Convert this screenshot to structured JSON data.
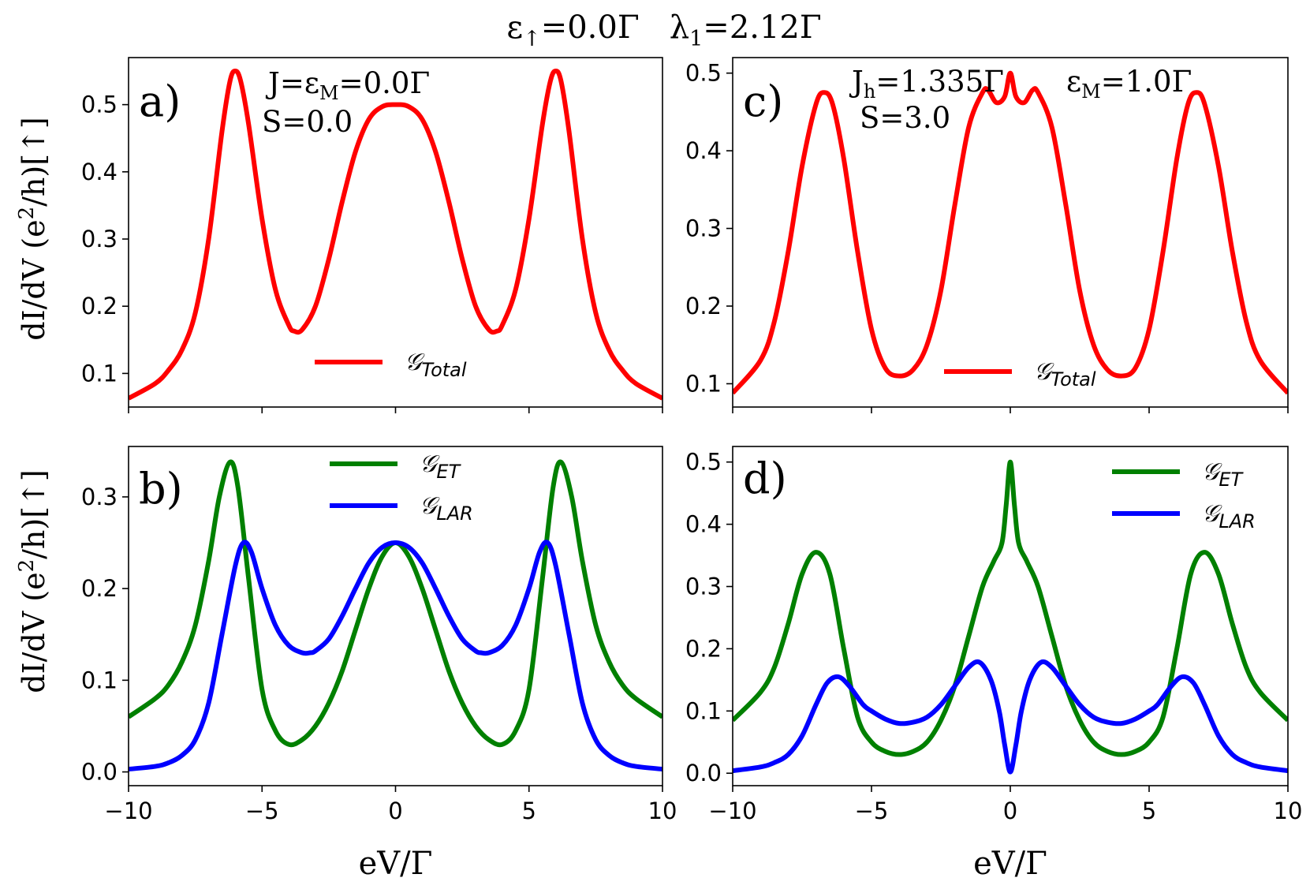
{
  "figure": {
    "title_parts": [
      "ε",
      "↑",
      "=0.0Γ   λ",
      "1",
      "=2.12Γ"
    ],
    "ylabel_parts": [
      "dI/dV (e",
      "2",
      "/h)[↑]"
    ],
    "xlabel": "eV/Γ"
  },
  "colors": {
    "total": "#ff0000",
    "et": "#008000",
    "lar": "#0000ff",
    "axis": "#000000",
    "background": "#ffffff"
  },
  "chart_data": [
    {
      "id": "a",
      "type": "line",
      "panel_label": "a)",
      "annotations": [
        {
          "parts": [
            "J=ε",
            "M",
            "=0.0Γ"
          ]
        },
        {
          "parts": [
            "S=0.0"
          ]
        }
      ],
      "xlim": [
        -10,
        10
      ],
      "ylim": [
        0.05,
        0.57
      ],
      "xticks": [
        -10,
        -5,
        0,
        5,
        10
      ],
      "yticks": [
        0.1,
        0.2,
        0.3,
        0.4,
        0.5
      ],
      "ytick_labels": [
        "0.1",
        "0.2",
        "0.3",
        "0.4",
        "0.5"
      ],
      "xtick_labels_visible": false,
      "xlabel": "",
      "legend_position": "bottom-center",
      "series": [
        {
          "name": "Total",
          "legend_main": "𝒢",
          "legend_sub": "Total",
          "color_key": "total",
          "x": [
            -10,
            -9,
            -8.5,
            -8,
            -7.5,
            -7,
            -6.5,
            -6.2,
            -6,
            -5.8,
            -5.5,
            -5,
            -4.5,
            -4,
            -3.8,
            -3.5,
            -3,
            -2.5,
            -2,
            -1.5,
            -1,
            -0.5,
            0,
            0.5,
            1,
            1.5,
            2,
            2.5,
            3,
            3.5,
            3.8,
            4,
            4.5,
            5,
            5.5,
            5.8,
            6,
            6.2,
            6.5,
            7,
            7.5,
            8,
            8.5,
            9,
            10
          ],
          "y": [
            0.063,
            0.085,
            0.105,
            0.135,
            0.19,
            0.3,
            0.46,
            0.535,
            0.55,
            0.535,
            0.47,
            0.33,
            0.225,
            0.172,
            0.163,
            0.165,
            0.2,
            0.27,
            0.355,
            0.43,
            0.478,
            0.497,
            0.5,
            0.497,
            0.478,
            0.43,
            0.355,
            0.27,
            0.2,
            0.165,
            0.163,
            0.172,
            0.225,
            0.33,
            0.47,
            0.535,
            0.55,
            0.535,
            0.46,
            0.3,
            0.19,
            0.135,
            0.105,
            0.085,
            0.063
          ]
        }
      ]
    },
    {
      "id": "b",
      "type": "line",
      "panel_label": "b)",
      "annotations": [],
      "xlim": [
        -10,
        10
      ],
      "ylim": [
        -0.015,
        0.355
      ],
      "xticks": [
        -10,
        -5,
        0,
        5,
        10
      ],
      "yticks": [
        0.0,
        0.1,
        0.2,
        0.3
      ],
      "ytick_labels": [
        "0.0",
        "0.1",
        "0.2",
        "0.3"
      ],
      "xtick_labels_visible": true,
      "xtick_labels": [
        "−10",
        "−5",
        "0",
        "5",
        "10"
      ],
      "xlabel": "eV/Γ",
      "legend_position": "top-center",
      "series": [
        {
          "name": "ET",
          "legend_main": "𝒢",
          "legend_sub": "ET",
          "color_key": "et",
          "x": [
            -10,
            -9,
            -8.5,
            -8,
            -7.5,
            -7,
            -6.6,
            -6.2,
            -5.9,
            -5.5,
            -5,
            -4.5,
            -4,
            -3.5,
            -3,
            -2.5,
            -2,
            -1.5,
            -1,
            -0.5,
            0,
            0.5,
            1,
            1.5,
            2,
            2.5,
            3,
            3.5,
            4,
            4.5,
            5,
            5.5,
            5.9,
            6.2,
            6.6,
            7,
            7.5,
            8,
            8.5,
            9,
            10
          ],
          "y": [
            0.06,
            0.08,
            0.095,
            0.12,
            0.16,
            0.23,
            0.3,
            0.338,
            0.31,
            0.21,
            0.09,
            0.045,
            0.03,
            0.035,
            0.05,
            0.075,
            0.11,
            0.155,
            0.2,
            0.235,
            0.25,
            0.235,
            0.2,
            0.155,
            0.11,
            0.075,
            0.05,
            0.035,
            0.03,
            0.045,
            0.09,
            0.21,
            0.31,
            0.338,
            0.3,
            0.23,
            0.16,
            0.12,
            0.095,
            0.08,
            0.06
          ]
        },
        {
          "name": "LAR",
          "legend_main": "𝒢",
          "legend_sub": "LAR",
          "color_key": "lar",
          "x": [
            -10,
            -9,
            -8.5,
            -8,
            -7.5,
            -7,
            -6.5,
            -6,
            -5.7,
            -5.4,
            -5,
            -4.5,
            -4,
            -3.5,
            -3.2,
            -3,
            -2.5,
            -2,
            -1.5,
            -1,
            -0.5,
            0,
            0.5,
            1,
            1.5,
            2,
            2.5,
            3,
            3.2,
            3.5,
            4,
            4.5,
            5,
            5.4,
            5.7,
            6,
            6.5,
            7,
            7.5,
            8,
            8.5,
            9,
            10
          ],
          "y": [
            0.003,
            0.006,
            0.01,
            0.018,
            0.035,
            0.075,
            0.15,
            0.225,
            0.25,
            0.24,
            0.2,
            0.16,
            0.138,
            0.13,
            0.13,
            0.132,
            0.145,
            0.17,
            0.2,
            0.228,
            0.245,
            0.25,
            0.245,
            0.228,
            0.2,
            0.17,
            0.145,
            0.132,
            0.13,
            0.13,
            0.138,
            0.16,
            0.2,
            0.24,
            0.25,
            0.225,
            0.15,
            0.075,
            0.035,
            0.018,
            0.01,
            0.006,
            0.003
          ]
        }
      ]
    },
    {
      "id": "c",
      "type": "line",
      "panel_label": "c)",
      "annotations": [
        {
          "parts": [
            "J",
            "h",
            "=1.335Γ"
          ]
        },
        {
          "parts": [
            "S=3.0"
          ]
        },
        {
          "parts": [
            "ε",
            "M",
            "=1.0Γ"
          ]
        }
      ],
      "xlim": [
        -10,
        10
      ],
      "ylim": [
        0.07,
        0.52
      ],
      "xticks": [
        -10,
        -5,
        0,
        5,
        10
      ],
      "yticks": [
        0.1,
        0.2,
        0.3,
        0.4,
        0.5
      ],
      "ytick_labels": [
        "0.1",
        "0.2",
        "0.3",
        "0.4",
        "0.5"
      ],
      "xtick_labels_visible": false,
      "xlabel": "",
      "legend_position": "bottom-center",
      "series": [
        {
          "name": "Total",
          "legend_main": "𝒢",
          "legend_sub": "Total",
          "color_key": "total",
          "x": [
            -10,
            -9,
            -8.5,
            -8,
            -7.5,
            -7,
            -6.7,
            -6.4,
            -6,
            -5.5,
            -5,
            -4.5,
            -4,
            -3.5,
            -3,
            -2.5,
            -2,
            -1.5,
            -1,
            -0.8,
            -0.5,
            -0.2,
            0,
            0.2,
            0.5,
            0.8,
            1,
            1.5,
            2,
            2.5,
            3,
            3.5,
            4,
            4.5,
            5,
            5.5,
            6,
            6.4,
            6.7,
            7,
            7.5,
            8,
            8.5,
            9,
            10
          ],
          "y": [
            0.088,
            0.13,
            0.18,
            0.27,
            0.38,
            0.46,
            0.475,
            0.46,
            0.39,
            0.27,
            0.17,
            0.12,
            0.11,
            0.118,
            0.15,
            0.22,
            0.33,
            0.43,
            0.475,
            0.478,
            0.462,
            0.47,
            0.5,
            0.47,
            0.462,
            0.478,
            0.475,
            0.43,
            0.33,
            0.22,
            0.15,
            0.118,
            0.11,
            0.12,
            0.17,
            0.27,
            0.39,
            0.46,
            0.475,
            0.46,
            0.38,
            0.27,
            0.18,
            0.13,
            0.088
          ]
        }
      ]
    },
    {
      "id": "d",
      "type": "line",
      "panel_label": "d)",
      "annotations": [],
      "xlim": [
        -10,
        10
      ],
      "ylim": [
        -0.02,
        0.525
      ],
      "xticks": [
        -10,
        -5,
        0,
        5,
        10
      ],
      "yticks": [
        0.0,
        0.1,
        0.2,
        0.3,
        0.4,
        0.5
      ],
      "ytick_labels": [
        "0.0",
        "0.1",
        "0.2",
        "0.3",
        "0.4",
        "0.5"
      ],
      "xtick_labels_visible": true,
      "xtick_labels": [
        "−10",
        "−5",
        "0",
        "5",
        "10"
      ],
      "xlabel": "eV/Γ",
      "legend_position": "top-right",
      "series": [
        {
          "name": "ET",
          "legend_main": "𝒢",
          "legend_sub": "ET",
          "color_key": "et",
          "x": [
            -10,
            -9,
            -8.5,
            -8,
            -7.5,
            -7,
            -6.5,
            -6,
            -5.5,
            -5,
            -4.5,
            -4,
            -3.5,
            -3,
            -2.5,
            -2,
            -1.5,
            -1,
            -0.6,
            -0.3,
            -0.15,
            0,
            0.15,
            0.3,
            0.6,
            1,
            1.5,
            2,
            2.5,
            3,
            3.5,
            4,
            4.5,
            5,
            5.5,
            6,
            6.5,
            7,
            7.5,
            8,
            8.5,
            9,
            10
          ],
          "y": [
            0.085,
            0.13,
            0.17,
            0.24,
            0.32,
            0.355,
            0.32,
            0.2,
            0.09,
            0.05,
            0.035,
            0.03,
            0.035,
            0.05,
            0.085,
            0.14,
            0.22,
            0.3,
            0.34,
            0.37,
            0.43,
            0.5,
            0.43,
            0.37,
            0.34,
            0.3,
            0.22,
            0.14,
            0.085,
            0.05,
            0.035,
            0.03,
            0.035,
            0.05,
            0.09,
            0.2,
            0.32,
            0.355,
            0.32,
            0.24,
            0.17,
            0.13,
            0.085
          ]
        },
        {
          "name": "LAR",
          "legend_main": "𝒢",
          "legend_sub": "LAR",
          "color_key": "lar",
          "x": [
            -10,
            -9,
            -8.5,
            -8,
            -7.5,
            -7,
            -6.6,
            -6.2,
            -5.8,
            -5.3,
            -5,
            -4.5,
            -4,
            -3.5,
            -3,
            -2.5,
            -2,
            -1.5,
            -1.1,
            -0.7,
            -0.4,
            -0.2,
            0,
            0.2,
            0.4,
            0.7,
            1.1,
            1.5,
            2,
            2.5,
            3,
            3.5,
            4,
            4.5,
            5,
            5.3,
            5.8,
            6.2,
            6.6,
            7,
            7.5,
            8,
            8.5,
            9,
            10
          ],
          "y": [
            0.004,
            0.01,
            0.017,
            0.03,
            0.06,
            0.11,
            0.145,
            0.155,
            0.14,
            0.11,
            0.1,
            0.087,
            0.08,
            0.082,
            0.09,
            0.11,
            0.14,
            0.17,
            0.178,
            0.15,
            0.1,
            0.045,
            0.002,
            0.045,
            0.1,
            0.15,
            0.178,
            0.17,
            0.14,
            0.11,
            0.09,
            0.082,
            0.08,
            0.087,
            0.1,
            0.11,
            0.14,
            0.155,
            0.145,
            0.11,
            0.06,
            0.03,
            0.017,
            0.01,
            0.004
          ]
        }
      ]
    }
  ]
}
